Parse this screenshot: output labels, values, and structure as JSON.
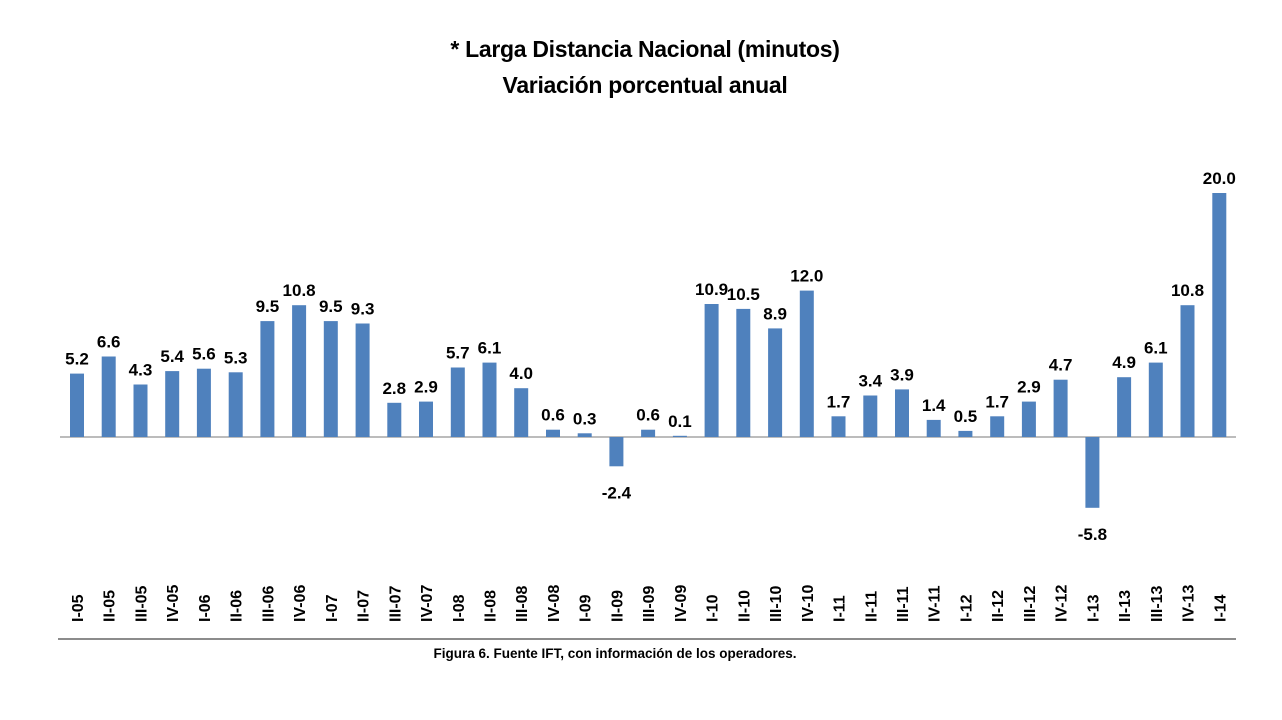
{
  "chart_data": {
    "type": "bar",
    "title": "* Larga Distancia Nacional (minutos)",
    "subtitle": "Variación porcentual anual",
    "xlabel": "",
    "ylabel": "",
    "ylim": [
      -5.8,
      20.0
    ],
    "grid": false,
    "legend": "none",
    "bar_color": "#4f81bd",
    "categories": [
      "I-05",
      "II-05",
      "III-05",
      "IV-05",
      "I-06",
      "II-06",
      "III-06",
      "IV-06",
      "I-07",
      "II-07",
      "III-07",
      "IV-07",
      "I-08",
      "II-08",
      "III-08",
      "IV-08",
      "I-09",
      "II-09",
      "III-09",
      "IV-09",
      "I-10",
      "II-10",
      "III-10",
      "IV-10",
      "I-11",
      "II-11",
      "III-11",
      "IV-11",
      "I-12",
      "II-12",
      "III-12",
      "IV-12",
      "I-13",
      "II-13",
      "III-13",
      "IV-13",
      "I-14"
    ],
    "values": [
      5.2,
      6.6,
      4.3,
      5.4,
      5.6,
      5.3,
      9.5,
      10.8,
      9.5,
      9.3,
      2.8,
      2.9,
      5.7,
      6.1,
      4.0,
      0.6,
      0.3,
      -2.4,
      0.6,
      0.1,
      10.9,
      10.5,
      8.9,
      12.0,
      1.7,
      3.4,
      3.9,
      1.4,
      0.5,
      1.7,
      2.9,
      4.7,
      -5.8,
      4.9,
      6.1,
      10.8,
      20.0
    ],
    "data_labels": [
      "5.2",
      "6.6",
      "4.3",
      "5.4",
      "5.6",
      "5.3",
      "9.5",
      "10.8",
      "9.5",
      "9.3",
      "2.8",
      "2.9",
      "5.7",
      "6.1",
      "4.0",
      "0.6",
      "0.3",
      "-2.4",
      "0.6",
      "0.1",
      "10.9",
      "10.5",
      "8.9",
      "12.0",
      "1.7",
      "3.4",
      "3.9",
      "1.4",
      "0.5",
      "1.7",
      "2.9",
      "4.7",
      "-5.8",
      "4.9",
      "6.1",
      "10.8",
      "20.0"
    ]
  },
  "caption": "Figura 6. Fuente IFT, con información de los operadores."
}
